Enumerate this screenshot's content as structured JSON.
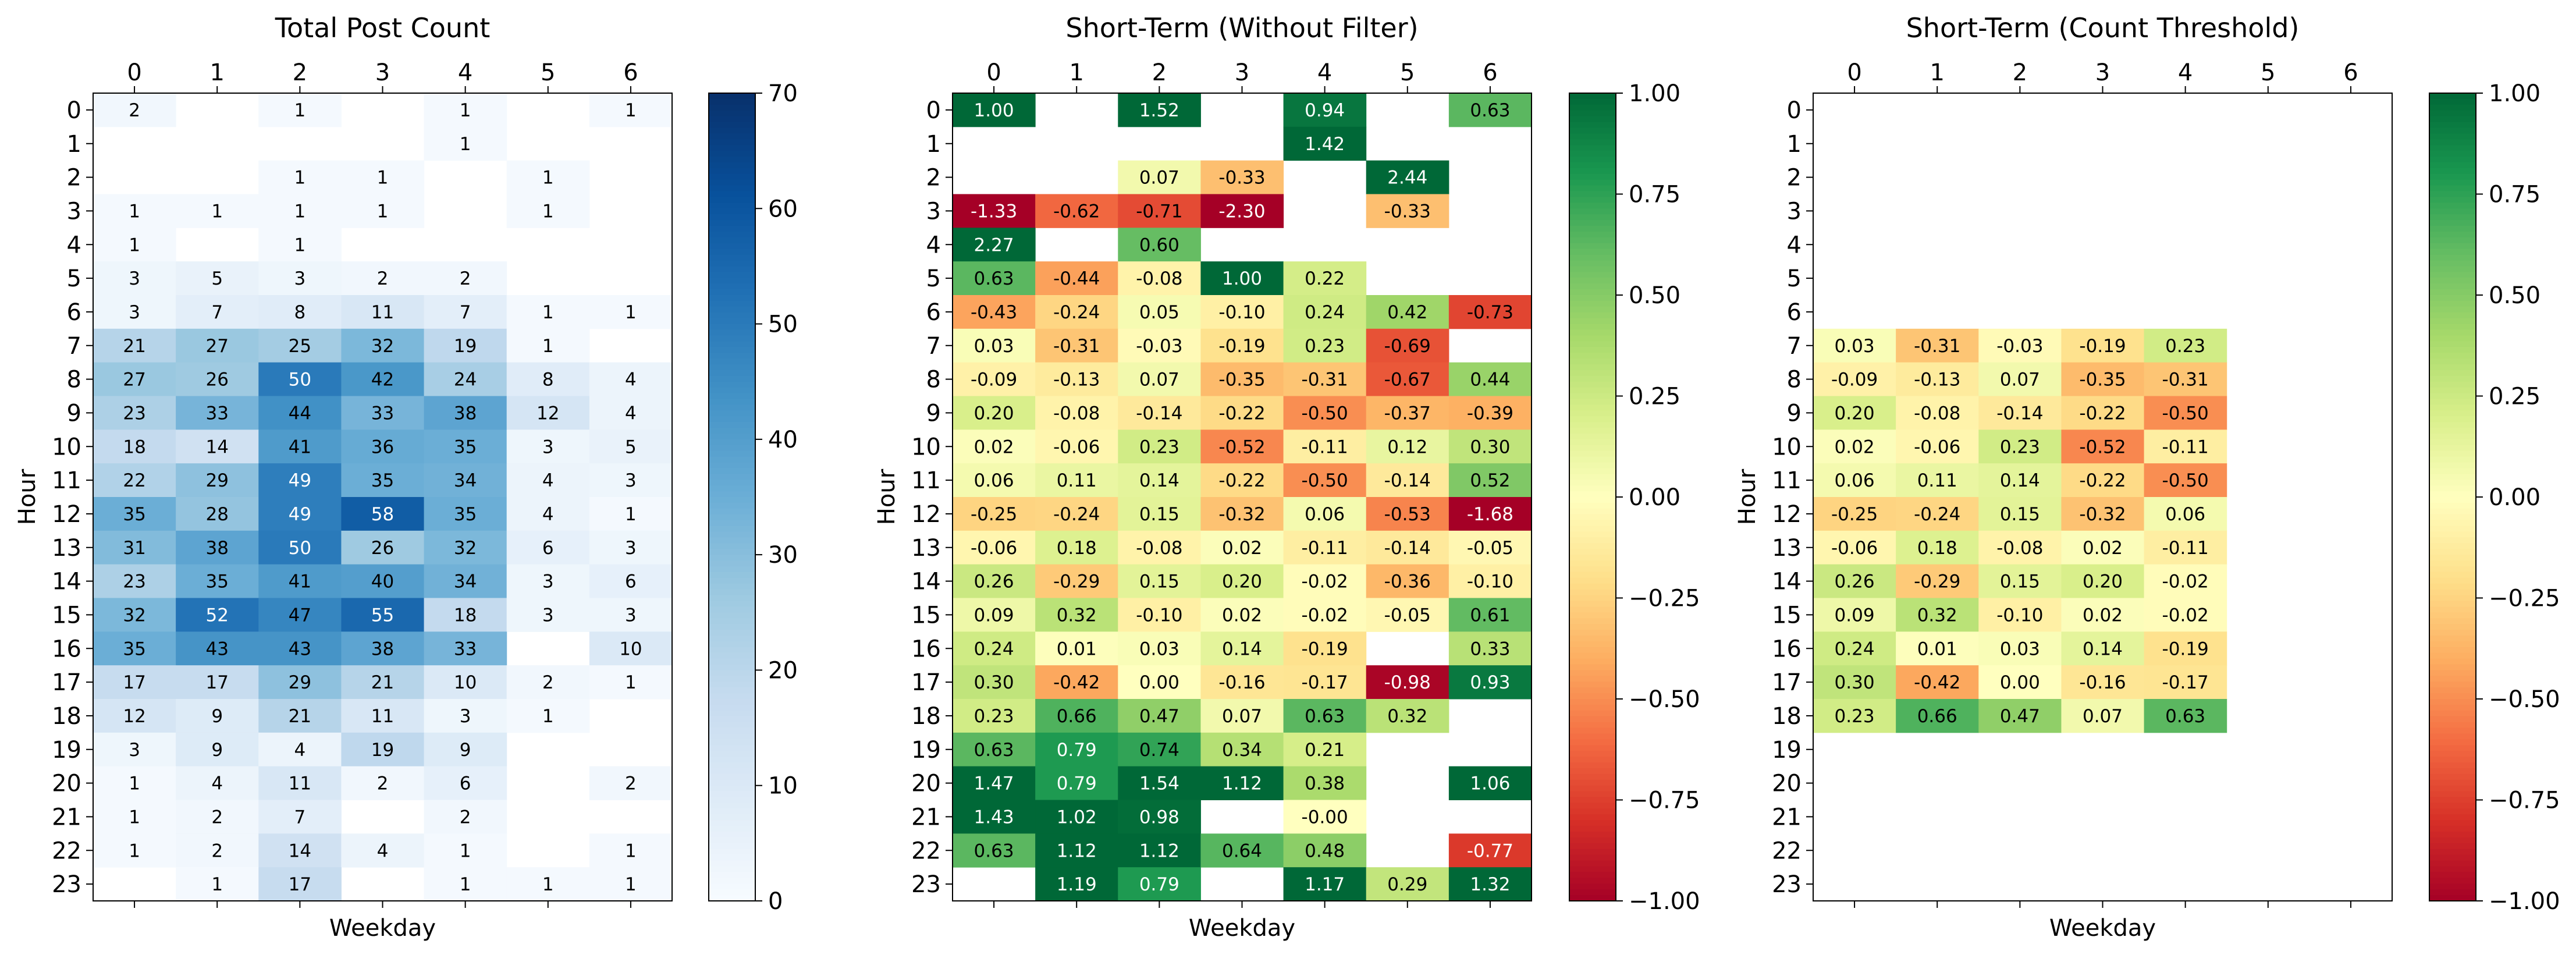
{
  "chart_data": [
    {
      "type": "heatmap",
      "title": "Total Post Count",
      "xlabel": "Weekday",
      "ylabel": "Hour",
      "x": [
        0,
        1,
        2,
        3,
        4,
        5,
        6
      ],
      "y": [
        0,
        1,
        2,
        3,
        4,
        5,
        6,
        7,
        8,
        9,
        10,
        11,
        12,
        13,
        14,
        15,
        16,
        17,
        18,
        19,
        20,
        21,
        22,
        23
      ],
      "cmap": "Blues",
      "vmin": 0,
      "vmax": 70,
      "colorbar_ticks": [
        "0",
        "10",
        "20",
        "30",
        "40",
        "50",
        "60",
        "70"
      ],
      "values": [
        [
          2,
          null,
          1,
          null,
          1,
          null,
          1
        ],
        [
          null,
          null,
          null,
          null,
          1,
          null,
          null
        ],
        [
          null,
          null,
          1,
          1,
          null,
          1,
          null
        ],
        [
          1,
          1,
          1,
          1,
          null,
          1,
          null
        ],
        [
          1,
          null,
          1,
          null,
          null,
          null,
          null
        ],
        [
          3,
          5,
          3,
          2,
          2,
          null,
          null
        ],
        [
          3,
          7,
          8,
          11,
          7,
          1,
          1
        ],
        [
          21,
          27,
          25,
          32,
          19,
          1,
          null
        ],
        [
          27,
          26,
          50,
          42,
          24,
          8,
          4
        ],
        [
          23,
          33,
          44,
          33,
          38,
          12,
          4
        ],
        [
          18,
          14,
          41,
          36,
          35,
          3,
          5
        ],
        [
          22,
          29,
          49,
          35,
          34,
          4,
          3
        ],
        [
          35,
          28,
          49,
          58,
          35,
          4,
          1
        ],
        [
          31,
          38,
          50,
          26,
          32,
          6,
          3
        ],
        [
          23,
          35,
          41,
          40,
          34,
          3,
          6
        ],
        [
          32,
          52,
          47,
          55,
          18,
          3,
          3
        ],
        [
          35,
          43,
          43,
          38,
          33,
          null,
          10
        ],
        [
          17,
          17,
          29,
          21,
          10,
          2,
          1
        ],
        [
          12,
          9,
          21,
          11,
          3,
          1,
          null
        ],
        [
          3,
          9,
          4,
          19,
          9,
          null,
          null
        ],
        [
          1,
          4,
          11,
          2,
          6,
          null,
          2
        ],
        [
          1,
          2,
          7,
          null,
          2,
          null,
          null
        ],
        [
          1,
          2,
          14,
          4,
          1,
          null,
          1
        ],
        [
          null,
          1,
          17,
          null,
          1,
          1,
          1
        ]
      ]
    },
    {
      "type": "heatmap",
      "title": "Short-Term (Without Filter)",
      "xlabel": "Weekday",
      "ylabel": "Hour",
      "x": [
        0,
        1,
        2,
        3,
        4,
        5,
        6
      ],
      "y": [
        0,
        1,
        2,
        3,
        4,
        5,
        6,
        7,
        8,
        9,
        10,
        11,
        12,
        13,
        14,
        15,
        16,
        17,
        18,
        19,
        20,
        21,
        22,
        23
      ],
      "cmap": "RdYlGn",
      "vmin": -1,
      "vmax": 1,
      "colorbar_ticks": [
        "−1.00",
        "−0.75",
        "−0.50",
        "−0.25",
        "0.00",
        "0.25",
        "0.50",
        "0.75",
        "1.00"
      ],
      "values": [
        [
          "1.00",
          null,
          "1.52",
          null,
          "0.94",
          null,
          "0.63"
        ],
        [
          null,
          null,
          null,
          null,
          "1.42",
          null,
          null
        ],
        [
          null,
          null,
          "0.07",
          "-0.33",
          null,
          "2.44",
          null
        ],
        [
          "-1.33",
          "-0.62",
          "-0.71",
          "-2.30",
          null,
          "-0.33",
          null
        ],
        [
          "2.27",
          null,
          "0.60",
          null,
          null,
          null,
          null
        ],
        [
          "0.63",
          "-0.44",
          "-0.08",
          "1.00",
          "0.22",
          null,
          null
        ],
        [
          "-0.43",
          "-0.24",
          "0.05",
          "-0.10",
          "0.24",
          "0.42",
          "-0.73"
        ],
        [
          "0.03",
          "-0.31",
          "-0.03",
          "-0.19",
          "0.23",
          "-0.69",
          null
        ],
        [
          "-0.09",
          "-0.13",
          "0.07",
          "-0.35",
          "-0.31",
          "-0.67",
          "0.44"
        ],
        [
          "0.20",
          "-0.08",
          "-0.14",
          "-0.22",
          "-0.50",
          "-0.37",
          "-0.39"
        ],
        [
          "0.02",
          "-0.06",
          "0.23",
          "-0.52",
          "-0.11",
          "0.12",
          "0.30"
        ],
        [
          "0.06",
          "0.11",
          "0.14",
          "-0.22",
          "-0.50",
          "-0.14",
          "0.52"
        ],
        [
          "-0.25",
          "-0.24",
          "0.15",
          "-0.32",
          "0.06",
          "-0.53",
          "-1.68"
        ],
        [
          "-0.06",
          "0.18",
          "-0.08",
          "0.02",
          "-0.11",
          "-0.14",
          "-0.05"
        ],
        [
          "0.26",
          "-0.29",
          "0.15",
          "0.20",
          "-0.02",
          "-0.36",
          "-0.10"
        ],
        [
          "0.09",
          "0.32",
          "-0.10",
          "0.02",
          "-0.02",
          "-0.05",
          "0.61"
        ],
        [
          "0.24",
          "0.01",
          "0.03",
          "0.14",
          "-0.19",
          null,
          "0.33"
        ],
        [
          "0.30",
          "-0.42",
          "0.00",
          "-0.16",
          "-0.17",
          "-0.98",
          "0.93"
        ],
        [
          "0.23",
          "0.66",
          "0.47",
          "0.07",
          "0.63",
          "0.32",
          null
        ],
        [
          "0.63",
          "0.79",
          "0.74",
          "0.34",
          "0.21",
          null,
          null
        ],
        [
          "1.47",
          "0.79",
          "1.54",
          "1.12",
          "0.38",
          null,
          "1.06"
        ],
        [
          "1.43",
          "1.02",
          "0.98",
          null,
          "-0.00",
          null,
          null
        ],
        [
          "0.63",
          "1.12",
          "1.12",
          "0.64",
          "0.48",
          null,
          "-0.77"
        ],
        [
          null,
          "1.19",
          "0.79",
          null,
          "1.17",
          "0.29",
          "1.32"
        ]
      ]
    },
    {
      "type": "heatmap",
      "title": "Short-Term (Count Threshold)",
      "xlabel": "Weekday",
      "ylabel": "Hour",
      "x": [
        0,
        1,
        2,
        3,
        4,
        5,
        6
      ],
      "y": [
        0,
        1,
        2,
        3,
        4,
        5,
        6,
        7,
        8,
        9,
        10,
        11,
        12,
        13,
        14,
        15,
        16,
        17,
        18,
        19,
        20,
        21,
        22,
        23
      ],
      "cmap": "RdYlGn",
      "vmin": -1,
      "vmax": 1,
      "colorbar_ticks": [
        "−1.00",
        "−0.75",
        "−0.50",
        "−0.25",
        "0.00",
        "0.25",
        "0.50",
        "0.75",
        "1.00"
      ],
      "values": [
        [
          null,
          null,
          null,
          null,
          null,
          null,
          null
        ],
        [
          null,
          null,
          null,
          null,
          null,
          null,
          null
        ],
        [
          null,
          null,
          null,
          null,
          null,
          null,
          null
        ],
        [
          null,
          null,
          null,
          null,
          null,
          null,
          null
        ],
        [
          null,
          null,
          null,
          null,
          null,
          null,
          null
        ],
        [
          null,
          null,
          null,
          null,
          null,
          null,
          null
        ],
        [
          null,
          null,
          null,
          null,
          null,
          null,
          null
        ],
        [
          "0.03",
          "-0.31",
          "-0.03",
          "-0.19",
          "0.23",
          null,
          null
        ],
        [
          "-0.09",
          "-0.13",
          "0.07",
          "-0.35",
          "-0.31",
          null,
          null
        ],
        [
          "0.20",
          "-0.08",
          "-0.14",
          "-0.22",
          "-0.50",
          null,
          null
        ],
        [
          "0.02",
          "-0.06",
          "0.23",
          "-0.52",
          "-0.11",
          null,
          null
        ],
        [
          "0.06",
          "0.11",
          "0.14",
          "-0.22",
          "-0.50",
          null,
          null
        ],
        [
          "-0.25",
          "-0.24",
          "0.15",
          "-0.32",
          "0.06",
          null,
          null
        ],
        [
          "-0.06",
          "0.18",
          "-0.08",
          "0.02",
          "-0.11",
          null,
          null
        ],
        [
          "0.26",
          "-0.29",
          "0.15",
          "0.20",
          "-0.02",
          null,
          null
        ],
        [
          "0.09",
          "0.32",
          "-0.10",
          "0.02",
          "-0.02",
          null,
          null
        ],
        [
          "0.24",
          "0.01",
          "0.03",
          "0.14",
          "-0.19",
          null,
          null
        ],
        [
          "0.30",
          "-0.42",
          "0.00",
          "-0.16",
          "-0.17",
          null,
          null
        ],
        [
          "0.23",
          "0.66",
          "0.47",
          "0.07",
          "0.63",
          null,
          null
        ],
        [
          null,
          null,
          null,
          null,
          null,
          null,
          null
        ],
        [
          null,
          null,
          null,
          null,
          null,
          null,
          null
        ],
        [
          null,
          null,
          null,
          null,
          null,
          null,
          null
        ],
        [
          null,
          null,
          null,
          null,
          null,
          null,
          null
        ],
        [
          null,
          null,
          null,
          null,
          null,
          null,
          null
        ]
      ]
    }
  ]
}
